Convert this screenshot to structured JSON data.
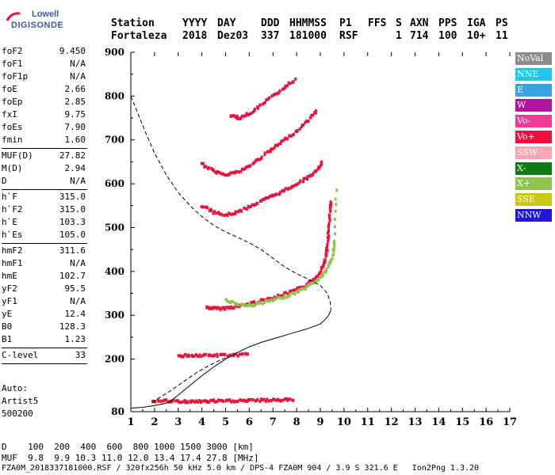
{
  "logo": {
    "line1": "Lowell",
    "line2": "DIGISONDE"
  },
  "header": {
    "labels": [
      "Station",
      "YYYY",
      "DAY",
      "DDD",
      "HHMMSS",
      "P1",
      "FFS",
      "S",
      "AXN",
      "PPS",
      "IGA",
      "PS"
    ],
    "values": [
      "Fortaleza",
      "2018",
      "Dez03",
      "337",
      "181000",
      "RSF",
      "",
      "1",
      "714",
      "100",
      "10+",
      "11"
    ]
  },
  "params_group1": [
    {
      "k": "foF2",
      "v": "9.450"
    },
    {
      "k": "foF1",
      "v": "N/A"
    },
    {
      "k": "foF1p",
      "v": "N/A"
    },
    {
      "k": "foE",
      "v": "2.66"
    },
    {
      "k": "foEp",
      "v": "2.85"
    },
    {
      "k": "fxI",
      "v": "9.75"
    },
    {
      "k": "foEs",
      "v": "7.90"
    },
    {
      "k": "fmin",
      "v": "1.60"
    }
  ],
  "params_group2": [
    {
      "k": "MUF(D)",
      "v": "27.82"
    },
    {
      "k": "M(D)",
      "v": "2.94"
    },
    {
      "k": "D",
      "v": "N/A"
    }
  ],
  "params_group3": [
    {
      "k": "h`F",
      "v": "315.0"
    },
    {
      "k": "h`F2",
      "v": "315.0"
    },
    {
      "k": "h`E",
      "v": "103.3"
    },
    {
      "k": "h`Es",
      "v": "105.0"
    }
  ],
  "params_group4": [
    {
      "k": "hmF2",
      "v": "311.6"
    },
    {
      "k": "hmF1",
      "v": "N/A"
    },
    {
      "k": "hmE",
      "v": "102.7"
    },
    {
      "k": "yF2",
      "v": "95.5"
    },
    {
      "k": "yF1",
      "v": "N/A"
    },
    {
      "k": "yE",
      "v": "12.4"
    },
    {
      "k": "B0",
      "v": "128.3"
    },
    {
      "k": "B1",
      "v": "1.23"
    }
  ],
  "clevel": {
    "k": "C-level",
    "v": "33"
  },
  "auto": [
    "Auto:",
    "Artist5",
    "500200"
  ],
  "legend": [
    {
      "label": "NoVal",
      "color": "#8c8c8c"
    },
    {
      "label": "NNE",
      "color": "#1ec8ec"
    },
    {
      "label": "E",
      "color": "#36a2e2"
    },
    {
      "label": "W",
      "color": "#b0159e"
    },
    {
      "label": "Vo-",
      "color": "#ee3c96"
    },
    {
      "label": "Vo+",
      "color": "#e8123c"
    },
    {
      "label": "SSW",
      "color": "#f4a6b4"
    },
    {
      "label": "X-",
      "color": "#127a14"
    },
    {
      "label": "X+",
      "color": "#8cc44e"
    },
    {
      "label": "SSE",
      "color": "#c8c814"
    },
    {
      "label": "NNW",
      "color": "#2018d8"
    }
  ],
  "footer": {
    "d_label": "D",
    "d_values": "100  200  400  600  800 1000 1500 3000 [km]",
    "muf_label": "MUF",
    "muf_values": "9.8  9.9 10.3 11.0 12.0 13.4 17.4 27.8 [MHz]",
    "fileinfo": "FZA0M_2018337181000.RSF / 320fx256h 50 kHz 5.0 km / DPS-4 FZA0M 904 / 3.9 S 321.6 E   Ion2Png 1.3.20"
  },
  "chart_data": {
    "type": "scatter",
    "xlim": [
      1,
      17
    ],
    "ylim": [
      80,
      900
    ],
    "x_ticks": [
      1,
      2,
      3,
      4,
      5,
      6,
      7,
      8,
      9,
      10,
      11,
      12,
      13,
      14,
      15,
      16,
      17
    ],
    "y_ticks": [
      80,
      200,
      300,
      400,
      500,
      600,
      700,
      800,
      900
    ],
    "y_tick_labels": [
      "80",
      "200",
      "300",
      "400",
      "500",
      "600",
      "700",
      "800",
      "900"
    ],
    "traces": [
      {
        "name": "F2 O-trace",
        "color": "#e8123c",
        "x": [
          4.2,
          4.6,
          5.0,
          5.5,
          6.0,
          6.5,
          7.0,
          7.5,
          8.0,
          8.4,
          8.8,
          9.0,
          9.2,
          9.3,
          9.35,
          9.4,
          9.45
        ],
        "y": [
          318,
          315,
          316,
          320,
          326,
          333,
          340,
          348,
          358,
          368,
          385,
          400,
          425,
          455,
          490,
          530,
          565
        ]
      },
      {
        "name": "F2 X-trace",
        "color": "#8cc44e",
        "x": [
          5.0,
          5.5,
          6.0,
          6.5,
          7.0,
          7.5,
          8.0,
          8.5,
          9.0,
          9.3,
          9.5,
          9.6,
          9.7
        ],
        "y": [
          335,
          325,
          322,
          328,
          334,
          342,
          352,
          366,
          385,
          405,
          430,
          470,
          600
        ]
      },
      {
        "name": "2F2 O-trace",
        "color": "#e8123c",
        "x": [
          4.0,
          4.5,
          5.0,
          5.5,
          6.0,
          6.5,
          7.0,
          7.5,
          8.0,
          8.5,
          8.9,
          9.1
        ],
        "y": [
          550,
          535,
          528,
          535,
          548,
          560,
          572,
          585,
          600,
          615,
          632,
          650
        ]
      },
      {
        "name": "3F2 O-trace",
        "color": "#e8123c",
        "x": [
          4.0,
          4.5,
          5.0,
          5.5,
          6.0,
          6.5,
          7.0,
          7.5,
          8.0,
          8.5,
          8.9
        ],
        "y": [
          645,
          628,
          622,
          626,
          640,
          660,
          680,
          700,
          720,
          745,
          770
        ]
      },
      {
        "name": "4F2 O-trace",
        "color": "#e8123c",
        "x": [
          5.2,
          5.6,
          6.0,
          6.5,
          7.0,
          7.5,
          8.0
        ],
        "y": [
          755,
          750,
          760,
          780,
          800,
          820,
          840
        ]
      },
      {
        "name": "Es trace",
        "color": "#e8123c",
        "x": [
          1.9,
          2.5,
          3.0,
          3.5,
          4.0,
          4.5,
          5.0,
          5.5,
          6.0,
          6.5,
          7.0,
          7.5,
          7.9
        ],
        "y": [
          105,
          104,
          103,
          103,
          103,
          104,
          104,
          105,
          105,
          106,
          106,
          107,
          107
        ]
      },
      {
        "name": "2Es trace",
        "color": "#e8123c",
        "x": [
          3.0,
          3.5,
          4.0,
          4.5,
          5.0,
          5.5,
          6.0
        ],
        "y": [
          208,
          208,
          208,
          208,
          209,
          209,
          210
        ]
      }
    ],
    "profile_solid": {
      "x": [
        1.0,
        1.5,
        2.0,
        2.4,
        2.66,
        3.0,
        3.5,
        4.0,
        4.5,
        5.0,
        5.5,
        6.0,
        6.5,
        7.0,
        7.5,
        8.0,
        8.5,
        9.0,
        9.2,
        9.35,
        9.42,
        9.45
      ],
      "y": [
        88,
        90,
        94,
        98,
        103,
        118,
        140,
        162,
        182,
        200,
        215,
        228,
        238,
        246,
        254,
        262,
        270,
        280,
        290,
        300,
        308,
        312
      ]
    },
    "profile_dashed": {
      "x": [
        1.0,
        1.3,
        1.6,
        2.0,
        2.5,
        3.0,
        3.5,
        4.0,
        4.5,
        5.0,
        5.5,
        6.0,
        6.5,
        7.0,
        7.5,
        8.0,
        8.5,
        9.0,
        9.3,
        9.42,
        9.45
      ],
      "y": [
        800,
        760,
        720,
        670,
        620,
        580,
        550,
        525,
        505,
        490,
        478,
        465,
        450,
        430,
        410,
        395,
        382,
        368,
        350,
        330,
        312
      ]
    },
    "dashed_lower": {
      "x": [
        1.9,
        2.2,
        2.6,
        3.0,
        3.4,
        3.8,
        4.2,
        4.6,
        5.0
      ],
      "y": [
        100,
        112,
        125,
        140,
        155,
        170,
        182,
        193,
        203
      ]
    }
  }
}
